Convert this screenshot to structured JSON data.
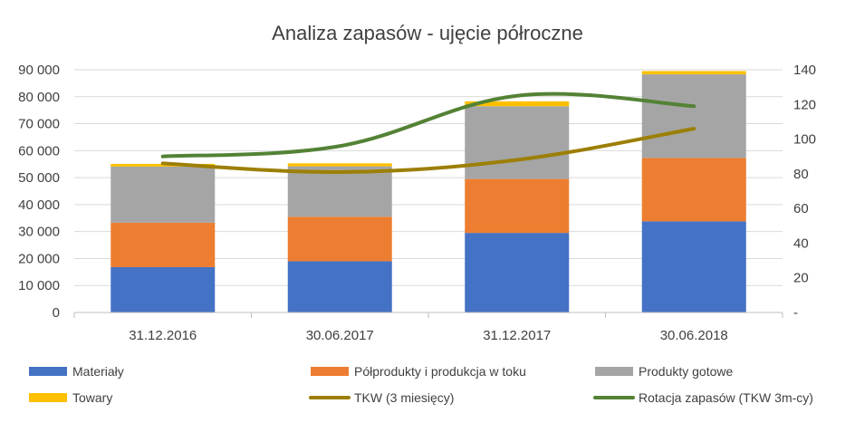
{
  "chart_data": {
    "type": "bar",
    "stacked": true,
    "title": "Analiza zapasów - ujęcie półroczne",
    "categories": [
      "31.12.2016",
      "30.06.2017",
      "31.12.2017",
      "30.06.2018"
    ],
    "series": [
      {
        "name": "Materiały",
        "type": "bar",
        "axis": "left",
        "color": "#4472C4",
        "values": [
          16800,
          19000,
          29500,
          33800
        ]
      },
      {
        "name": "Półprodukty i produkcja w toku",
        "type": "bar",
        "axis": "left",
        "color": "#ED7D31",
        "values": [
          16500,
          16500,
          20000,
          23500
        ]
      },
      {
        "name": "Produkty gotowe",
        "type": "bar",
        "axis": "left",
        "color": "#A5A5A5",
        "values": [
          20800,
          18700,
          27000,
          31000
        ]
      },
      {
        "name": "Towary",
        "type": "bar",
        "axis": "left",
        "color": "#FFC000",
        "values": [
          1000,
          1100,
          1800,
          1200
        ]
      },
      {
        "name": "TKW (3 miesięcy)",
        "type": "line",
        "axis": "right",
        "color": "#9C7F04",
        "values": [
          86,
          81,
          88,
          106
        ]
      },
      {
        "name": "Rotacja zapasów (TKW 3m-cy)",
        "type": "line",
        "axis": "right",
        "color": "#548235",
        "values": [
          90,
          96,
          125,
          119
        ]
      }
    ],
    "y_left": {
      "min": 0,
      "max": 90000,
      "ticks": [
        "0",
        "10 000",
        "20 000",
        "30 000",
        "40 000",
        "50 000",
        "60 000",
        "70 000",
        "80 000",
        "90 000"
      ]
    },
    "y_right": {
      "min": 0,
      "max": 140,
      "ticks": [
        "-",
        "20",
        "40",
        "60",
        "80",
        "100",
        "120",
        "140"
      ]
    },
    "grid": true,
    "legend_position": "bottom"
  }
}
